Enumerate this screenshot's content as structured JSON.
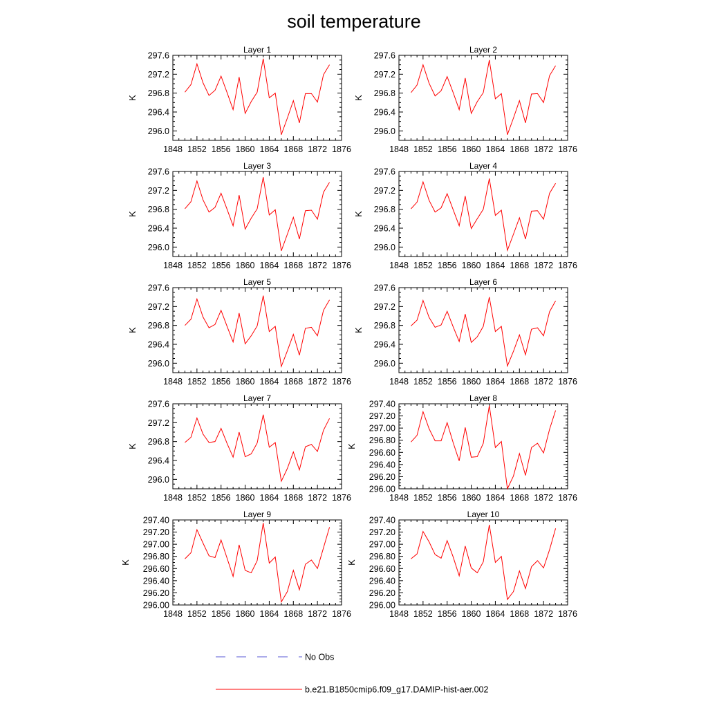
{
  "title": "soil temperature",
  "chart_data": {
    "type": "line",
    "title": "soil temperature",
    "x": [
      1850,
      1851,
      1852,
      1853,
      1854,
      1855,
      1856,
      1857,
      1858,
      1859,
      1860,
      1861,
      1862,
      1863,
      1864,
      1865,
      1866,
      1867,
      1868,
      1869,
      1870,
      1871,
      1872,
      1873,
      1874
    ],
    "xlim": [
      1848,
      1876
    ],
    "xticks": [
      1848,
      1852,
      1856,
      1860,
      1864,
      1868,
      1872,
      1876
    ],
    "panels": [
      {
        "title": "Layer 1",
        "ylabel": "K",
        "ylim": [
          295.8,
          297.6
        ],
        "yticks": [
          296.0,
          296.4,
          296.8,
          297.2,
          297.6
        ],
        "ytick_decimals": 1,
        "values": [
          296.82,
          296.98,
          297.42,
          297.02,
          296.75,
          296.86,
          297.16,
          296.81,
          296.45,
          297.14,
          296.37,
          296.62,
          296.82,
          297.53,
          296.7,
          296.8,
          295.92,
          296.27,
          296.64,
          296.17,
          296.79,
          296.79,
          296.61,
          297.19,
          297.4
        ]
      },
      {
        "title": "Layer 2",
        "ylabel": "K",
        "ylim": [
          295.8,
          297.6
        ],
        "yticks": [
          296.0,
          296.4,
          296.8,
          297.2,
          297.6
        ],
        "ytick_decimals": 1,
        "values": [
          296.81,
          296.97,
          297.4,
          297.01,
          296.74,
          296.85,
          297.15,
          296.81,
          296.45,
          297.12,
          296.37,
          296.62,
          296.81,
          297.5,
          296.68,
          296.79,
          295.92,
          296.27,
          296.64,
          296.17,
          296.78,
          296.79,
          296.6,
          297.17,
          297.38
        ]
      },
      {
        "title": "Layer 3",
        "ylabel": "K",
        "ylim": [
          295.8,
          297.6
        ],
        "yticks": [
          296.0,
          296.4,
          296.8,
          297.2,
          297.6
        ],
        "ytick_decimals": 1,
        "values": [
          296.81,
          296.96,
          297.4,
          297.0,
          296.74,
          296.84,
          297.14,
          296.8,
          296.45,
          297.1,
          296.38,
          296.61,
          296.81,
          297.48,
          296.68,
          296.79,
          295.92,
          296.27,
          296.63,
          296.17,
          296.77,
          296.78,
          296.59,
          297.16,
          297.37
        ]
      },
      {
        "title": "Layer 4",
        "ylabel": "K",
        "ylim": [
          295.8,
          297.6
        ],
        "yticks": [
          296.0,
          296.4,
          296.8,
          297.2,
          297.6
        ],
        "ytick_decimals": 1,
        "values": [
          296.81,
          296.95,
          297.38,
          296.99,
          296.74,
          296.83,
          297.13,
          296.79,
          296.45,
          297.08,
          296.39,
          296.6,
          296.8,
          297.45,
          296.67,
          296.78,
          295.93,
          296.27,
          296.62,
          296.17,
          296.76,
          296.77,
          296.59,
          297.14,
          297.35
        ]
      },
      {
        "title": "Layer 5",
        "ylabel": "K",
        "ylim": [
          295.8,
          297.6
        ],
        "yticks": [
          296.0,
          296.4,
          296.8,
          297.2,
          297.6
        ],
        "ytick_decimals": 1,
        "values": [
          296.8,
          296.93,
          297.36,
          296.98,
          296.75,
          296.82,
          297.12,
          296.78,
          296.45,
          297.06,
          296.41,
          296.58,
          296.79,
          297.43,
          296.67,
          296.78,
          295.93,
          296.26,
          296.61,
          296.17,
          296.74,
          296.76,
          296.58,
          297.12,
          297.34
        ]
      },
      {
        "title": "Layer 6",
        "ylabel": "K",
        "ylim": [
          295.8,
          297.6
        ],
        "yticks": [
          296.0,
          296.4,
          296.8,
          297.2,
          297.6
        ],
        "ytick_decimals": 1,
        "values": [
          296.79,
          296.91,
          297.33,
          296.97,
          296.76,
          296.81,
          297.1,
          296.77,
          296.46,
          297.04,
          296.44,
          296.56,
          296.78,
          297.4,
          296.67,
          296.78,
          295.94,
          296.25,
          296.6,
          296.18,
          296.72,
          296.75,
          296.58,
          297.09,
          297.32
        ]
      },
      {
        "title": "Layer 7",
        "ylabel": "K",
        "ylim": [
          295.8,
          297.6
        ],
        "yticks": [
          296.0,
          296.4,
          296.8,
          297.2,
          297.6
        ],
        "ytick_decimals": 1,
        "values": [
          296.78,
          296.89,
          297.3,
          296.96,
          296.78,
          296.8,
          297.08,
          296.76,
          296.47,
          297.0,
          296.48,
          296.54,
          296.77,
          297.37,
          296.68,
          296.78,
          295.96,
          296.23,
          296.58,
          296.2,
          296.69,
          296.74,
          296.59,
          297.04,
          297.29
        ]
      },
      {
        "title": "Layer 8",
        "ylabel": "K",
        "ylim": [
          296.0,
          297.4
        ],
        "yticks": [
          296.0,
          296.2,
          296.4,
          296.6,
          296.8,
          297.0,
          297.2,
          297.4
        ],
        "ytick_decimals": 2,
        "values": [
          296.77,
          296.88,
          297.27,
          296.99,
          296.79,
          296.79,
          297.09,
          296.76,
          296.46,
          297.01,
          296.52,
          296.53,
          296.75,
          297.37,
          296.68,
          296.78,
          296.0,
          296.21,
          296.58,
          296.22,
          296.68,
          296.75,
          296.59,
          296.98,
          297.29
        ]
      },
      {
        "title": "Layer 9",
        "ylabel": "K",
        "ylim": [
          296.0,
          297.4
        ],
        "yticks": [
          296.0,
          296.2,
          296.4,
          296.6,
          296.8,
          297.0,
          297.2,
          297.4
        ],
        "ytick_decimals": 2,
        "values": [
          296.76,
          296.86,
          297.24,
          297.02,
          296.81,
          296.78,
          297.07,
          296.77,
          296.47,
          296.99,
          296.57,
          296.53,
          296.73,
          297.35,
          296.69,
          296.79,
          296.05,
          296.22,
          296.57,
          296.25,
          296.67,
          296.74,
          296.6,
          296.94,
          297.28
        ]
      },
      {
        "title": "Layer 10",
        "ylabel": "K",
        "ylim": [
          296.0,
          297.4
        ],
        "yticks": [
          296.0,
          296.2,
          296.4,
          296.6,
          296.8,
          297.0,
          297.2,
          297.4
        ],
        "ytick_decimals": 2,
        "values": [
          296.76,
          296.84,
          297.21,
          297.04,
          296.83,
          296.77,
          297.06,
          296.79,
          296.48,
          296.97,
          296.61,
          296.53,
          296.71,
          297.32,
          296.7,
          296.8,
          296.09,
          296.22,
          296.56,
          296.27,
          296.63,
          296.73,
          296.61,
          296.91,
          297.26
        ]
      }
    ],
    "legend": [
      {
        "label": "No Obs",
        "style": "dashed",
        "color": "#5a5ad6"
      },
      {
        "label": "b.e21.B1850cmip6.f09_g17.DAMIP-hist-aer.002",
        "style": "solid",
        "color": "#ff0000"
      }
    ],
    "series_color": "#ff0000",
    "grid": false
  }
}
